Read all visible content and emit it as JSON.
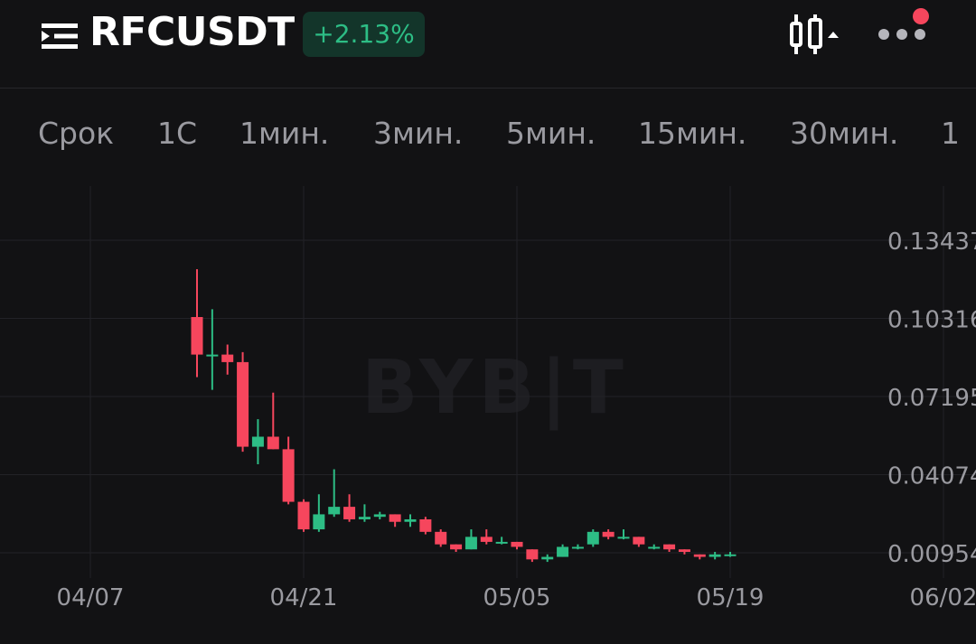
{
  "header": {
    "symbol": "RFCUSDT",
    "change": "+2.13%",
    "colors": {
      "up": "#2dbd85",
      "down": "#f6465d",
      "background": "#121214"
    },
    "icons": [
      "menu-icon",
      "candlestick-chart-icon",
      "more-icon"
    ]
  },
  "timeframes": [
    "Срок",
    "1С",
    "1мин.",
    "3мин.",
    "5мин.",
    "15мин.",
    "30мин.",
    "1"
  ],
  "watermark": "BYB|T",
  "chart_data": {
    "type": "candlestick",
    "x_ticks": [
      "04/07",
      "04/21",
      "05/05",
      "05/19",
      "06/02"
    ],
    "y_ticks": [
      "0.13437",
      "0.10316",
      "0.07195",
      "0.04074",
      "0.00954"
    ],
    "candles": [
      {
        "date": "2024-04-14",
        "open": 0.1037,
        "high": 0.1228,
        "low": 0.0797,
        "close": 0.0887
      },
      {
        "date": "2024-04-15",
        "open": 0.0887,
        "high": 0.1068,
        "low": 0.0746,
        "close": 0.0887
      },
      {
        "date": "2024-04-16",
        "open": 0.0887,
        "high": 0.0927,
        "low": 0.0807,
        "close": 0.0857
      },
      {
        "date": "2024-04-17",
        "open": 0.0857,
        "high": 0.0897,
        "low": 0.0499,
        "close": 0.0519
      },
      {
        "date": "2024-04-18",
        "open": 0.0519,
        "high": 0.0629,
        "low": 0.0449,
        "close": 0.0559
      },
      {
        "date": "2024-04-19",
        "open": 0.0559,
        "high": 0.0735,
        "low": 0.0509,
        "close": 0.0509
      },
      {
        "date": "2024-04-20",
        "open": 0.0509,
        "high": 0.0559,
        "low": 0.0289,
        "close": 0.0299
      },
      {
        "date": "2024-04-21",
        "open": 0.0299,
        "high": 0.0309,
        "low": 0.0179,
        "close": 0.0189
      },
      {
        "date": "2024-04-22",
        "open": 0.0189,
        "high": 0.0329,
        "low": 0.0179,
        "close": 0.0249
      },
      {
        "date": "2024-04-23",
        "open": 0.0249,
        "high": 0.0429,
        "low": 0.0239,
        "close": 0.0279
      },
      {
        "date": "2024-04-24",
        "open": 0.0279,
        "high": 0.0329,
        "low": 0.0219,
        "close": 0.0229
      },
      {
        "date": "2024-04-25",
        "open": 0.0229,
        "high": 0.0289,
        "low": 0.0219,
        "close": 0.0239
      },
      {
        "date": "2024-04-26",
        "open": 0.0239,
        "high": 0.0259,
        "low": 0.0229,
        "close": 0.0249
      },
      {
        "date": "2024-04-27",
        "open": 0.0249,
        "high": 0.0249,
        "low": 0.0199,
        "close": 0.0219
      },
      {
        "date": "2024-04-28",
        "open": 0.0219,
        "high": 0.0249,
        "low": 0.0199,
        "close": 0.0229
      },
      {
        "date": "2024-04-29",
        "open": 0.0229,
        "high": 0.0239,
        "low": 0.0169,
        "close": 0.0179
      },
      {
        "date": "2024-04-30",
        "open": 0.0179,
        "high": 0.0189,
        "low": 0.0119,
        "close": 0.0129
      },
      {
        "date": "2024-05-01",
        "open": 0.0129,
        "high": 0.0129,
        "low": 0.0099,
        "close": 0.0109
      },
      {
        "date": "2024-05-02",
        "open": 0.0109,
        "high": 0.0189,
        "low": 0.0109,
        "close": 0.0159
      },
      {
        "date": "2024-05-03",
        "open": 0.0159,
        "high": 0.0189,
        "low": 0.0129,
        "close": 0.0139
      },
      {
        "date": "2024-05-04",
        "open": 0.0139,
        "high": 0.0159,
        "low": 0.0129,
        "close": 0.0139
      },
      {
        "date": "2024-05-05",
        "open": 0.0139,
        "high": 0.0139,
        "low": 0.0109,
        "close": 0.0119
      },
      {
        "date": "2024-05-06",
        "open": 0.0109,
        "high": 0.0109,
        "low": 0.0059,
        "close": 0.0069
      },
      {
        "date": "2024-05-07",
        "open": 0.0069,
        "high": 0.0089,
        "low": 0.0059,
        "close": 0.0079
      },
      {
        "date": "2024-05-08",
        "open": 0.0079,
        "high": 0.0129,
        "low": 0.0079,
        "close": 0.0119
      },
      {
        "date": "2024-05-09",
        "open": 0.0119,
        "high": 0.0129,
        "low": 0.0109,
        "close": 0.0119
      },
      {
        "date": "2024-05-10",
        "open": 0.0129,
        "high": 0.0189,
        "low": 0.0119,
        "close": 0.0179
      },
      {
        "date": "2024-05-11",
        "open": 0.0179,
        "high": 0.0189,
        "low": 0.0149,
        "close": 0.0159
      },
      {
        "date": "2024-05-12",
        "open": 0.0159,
        "high": 0.0189,
        "low": 0.0149,
        "close": 0.0159
      },
      {
        "date": "2024-05-13",
        "open": 0.0159,
        "high": 0.0159,
        "low": 0.0119,
        "close": 0.0129
      },
      {
        "date": "2024-05-14",
        "open": 0.0119,
        "high": 0.0129,
        "low": 0.0109,
        "close": 0.0119
      },
      {
        "date": "2024-05-15",
        "open": 0.0129,
        "high": 0.0129,
        "low": 0.0099,
        "close": 0.0109
      },
      {
        "date": "2024-05-16",
        "open": 0.0109,
        "high": 0.0109,
        "low": 0.0089,
        "close": 0.0099
      },
      {
        "date": "2024-05-17",
        "open": 0.0089,
        "high": 0.0089,
        "low": 0.0069,
        "close": 0.0079
      },
      {
        "date": "2024-05-18",
        "open": 0.0079,
        "high": 0.0099,
        "low": 0.0069,
        "close": 0.0089
      },
      {
        "date": "2024-05-19",
        "open": 0.0089,
        "high": 0.0099,
        "low": 0.0079,
        "close": 0.0089
      }
    ]
  }
}
